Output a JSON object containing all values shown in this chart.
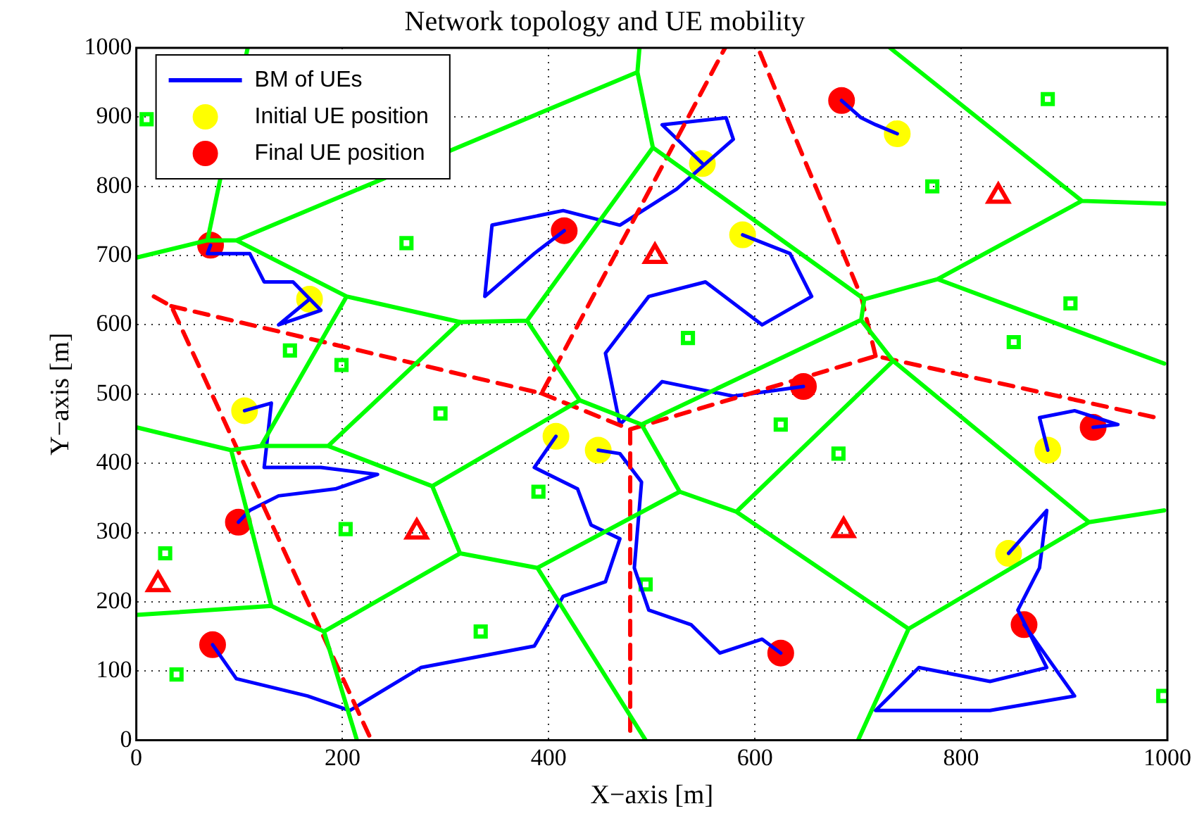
{
  "chart_data": {
    "type": "scatter",
    "title": "Network topology and UE mobility",
    "xlabel": "X−axis [m]",
    "ylabel": "Y−axis [m]",
    "xlim": [
      0,
      1000
    ],
    "ylim": [
      0,
      1000
    ],
    "xticks": [
      0,
      200,
      400,
      600,
      800,
      1000
    ],
    "yticks": [
      0,
      100,
      200,
      300,
      400,
      500,
      600,
      700,
      800,
      900,
      1000
    ],
    "grid": true,
    "legend": "top left",
    "series": [
      {
        "type": "line",
        "marker": "none",
        "line_style": "solid",
        "color": "#00ff00",
        "x": [
          0,
          69,
          97,
          204,
          314,
          379,
          501,
          null,
          108,
          69,
          null,
          97,
          486,
          488,
          null,
          486,
          501,
          706,
          777,
          917,
          731,
          null,
          917,
          997,
          null,
          777,
          997,
          null,
          706,
          703,
          490,
          430,
          287,
          186,
          121,
          92,
          0,
          null,
          121,
          204,
          null,
          314,
          186,
          null,
          379,
          430,
          null,
          490,
          527,
          582,
          734,
          703,
          null,
          734,
          924,
          997,
          null,
          924,
          749,
          700,
          null,
          582,
          749,
          null,
          527,
          389,
          494,
          null,
          389,
          314,
          287,
          null,
          314,
          182,
          131,
          92,
          null,
          182,
          214,
          null,
          131,
          0
        ],
        "values": [
          697,
          722,
          722,
          641,
          604,
          606,
          856,
          null,
          1000,
          722,
          null,
          722,
          965,
          1000,
          null,
          965,
          856,
          637,
          666,
          779,
          1000,
          null,
          779,
          775,
          null,
          666,
          544,
          null,
          637,
          607,
          456,
          491,
          367,
          425,
          425,
          419,
          452,
          null,
          425,
          641,
          null,
          604,
          425,
          null,
          606,
          491,
          null,
          456,
          359,
          330,
          548,
          607,
          null,
          548,
          315,
          332,
          null,
          315,
          161,
          0,
          null,
          330,
          161,
          null,
          359,
          249,
          0,
          null,
          249,
          270,
          367,
          null,
          270,
          157,
          194,
          419,
          null,
          157,
          0,
          null,
          194,
          181
        ]
      },
      {
        "type": "line",
        "marker": "none",
        "line_style": "dashed",
        "color": "#ff0000",
        "x": [
          17,
          34,
          228,
          null,
          34,
          393,
          571,
          null,
          393,
          479,
          479,
          null,
          479,
          717,
          989,
          null,
          717,
          703,
          603
        ],
        "values": [
          641,
          627,
          0,
          null,
          627,
          501,
          1000,
          null,
          501,
          449,
          0,
          null,
          449,
          555,
          466,
          null,
          555,
          641,
          1000
        ]
      },
      {
        "type": "line",
        "name": "BM of UEs",
        "marker": "none",
        "line_style": "solid",
        "color": "#0000ff",
        "x": [
          168,
          138,
          179,
          152,
          124,
          110,
          69,
          72,
          null,
          105,
          131,
          124,
          179,
          234,
          193,
          138,
          110,
          99,
          null,
          407,
          386,
          428,
          441,
          469,
          455,
          414,
          386,
          276,
          207,
          166,
          97,
          74,
          null,
          448,
          469,
          490,
          483,
          497,
          538,
          566,
          607,
          625,
          null,
          549,
          510,
          572,
          579,
          524,
          469,
          414,
          345,
          338,
          386,
          415,
          null,
          588,
          634,
          655,
          607,
          552,
          497,
          455,
          469,
          510,
          579,
          647,
          null,
          738,
          717,
          703,
          684,
          null,
          884,
          876,
          910,
          952,
          928,
          null,
          846,
          883,
          876,
          855,
          883,
          828,
          759,
          717,
          828,
          910,
          861
        ],
        "values": [
          637,
          600,
          621,
          662,
          662,
          703,
          703,
          715,
          null,
          476,
          487,
          394,
          394,
          384,
          363,
          353,
          332,
          315,
          null,
          439,
          394,
          363,
          311,
          291,
          229,
          208,
          136,
          105,
          43,
          64,
          89,
          138,
          null,
          419,
          414,
          373,
          249,
          188,
          167,
          126,
          146,
          126,
          null,
          833,
          889,
          899,
          868,
          796,
          744,
          765,
          744,
          641,
          703,
          736,
          null,
          730,
          703,
          641,
          600,
          662,
          641,
          559,
          456,
          518,
          497,
          511,
          null,
          876,
          889,
          899,
          924,
          null,
          419,
          466,
          476,
          456,
          452,
          null,
          270,
          332,
          249,
          188,
          105,
          85,
          105,
          43,
          43,
          64,
          167
        ]
      },
      {
        "marker": "square",
        "color": "#00ff00",
        "x": [
          10,
          884,
          772,
          262,
          906,
          851,
          149,
          199,
          535,
          625,
          681,
          295,
          390,
          203,
          28,
          494,
          334,
          39,
          996
        ],
        "values": [
          897,
          926,
          800,
          718,
          631,
          575,
          563,
          542,
          581,
          456,
          414,
          472,
          359,
          305,
          270,
          225,
          157,
          95,
          64
        ]
      },
      {
        "marker": "triangle",
        "color": "#ff0000",
        "x": [
          836,
          503,
          272,
          686,
          21
        ],
        "values": [
          786,
          699,
          301,
          303,
          225
        ]
      },
      {
        "name": "Initial UE position",
        "marker": "circle",
        "color": "#ffff00",
        "x": [
          168,
          105,
          407,
          448,
          549,
          588,
          738,
          884,
          846
        ],
        "values": [
          637,
          476,
          439,
          419,
          833,
          730,
          876,
          419,
          270
        ]
      },
      {
        "name": "Final UE position",
        "marker": "circle",
        "color": "#ff0000",
        "x": [
          72,
          415,
          684,
          647,
          928,
          99,
          74,
          625,
          861
        ],
        "values": [
          715,
          736,
          924,
          511,
          452,
          315,
          138,
          126,
          167
        ]
      }
    ]
  }
}
